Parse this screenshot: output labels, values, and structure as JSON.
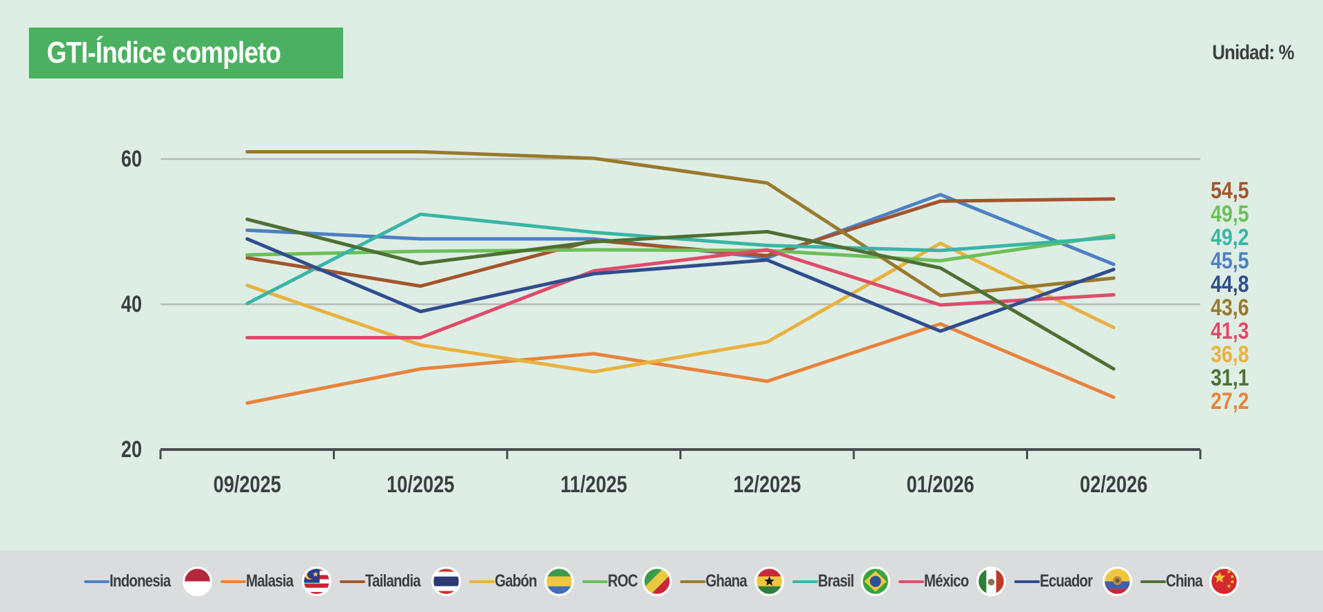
{
  "title": "GTI-Índice completo",
  "unit_label": "Unidad: %",
  "colors": {
    "background": "#dfeee5",
    "title_bg": "#4bb161",
    "title_text": "#ffffff",
    "legend_bg": "#dbdcde",
    "grid": "#b6b9ba",
    "axis": "#4a4d4f",
    "text": "#3b3e42"
  },
  "chart_data": {
    "type": "line",
    "title": "GTI-Índice completo",
    "unit": "%",
    "categories": [
      "09/2025",
      "10/2025",
      "11/2025",
      "12/2025",
      "01/2026",
      "02/2026"
    ],
    "yticks": [
      60,
      40,
      20
    ],
    "ylim": [
      20,
      63
    ],
    "grid": "horizontal-only",
    "legend_position": "bottom",
    "decimal_separator": ",",
    "series": [
      {
        "name": "Indonesia",
        "flag": "indonesia",
        "color": "#4d80c4",
        "values": [
          50.2,
          49.0,
          49.0,
          46.4,
          55.1,
          45.5
        ],
        "end_label": "45,5"
      },
      {
        "name": "Malasia",
        "flag": "malaysia",
        "color": "#e8833c",
        "values": [
          26.4,
          31.1,
          33.2,
          29.4,
          37.3,
          27.2
        ],
        "end_label": "27,2"
      },
      {
        "name": "Tailandia",
        "flag": "thailand",
        "color": "#a3542c",
        "values": [
          46.4,
          42.5,
          48.8,
          46.7,
          54.2,
          54.5
        ],
        "end_label": "54,5"
      },
      {
        "name": "Gabón",
        "flag": "gabon",
        "color": "#e9b23e",
        "values": [
          42.6,
          34.4,
          30.7,
          34.8,
          48.4,
          36.8
        ],
        "end_label": "36,8"
      },
      {
        "name": "ROC",
        "flag": "congo",
        "color": "#6cbf58",
        "values": [
          46.8,
          47.3,
          47.5,
          47.4,
          46.0,
          49.5
        ],
        "end_label": "49,5"
      },
      {
        "name": "Ghana",
        "flag": "ghana",
        "color": "#99792c",
        "values": [
          61.0,
          61.0,
          60.1,
          56.7,
          41.2,
          43.6
        ],
        "end_label": "43,6"
      },
      {
        "name": "Brasil",
        "flag": "brazil",
        "color": "#37b6a6",
        "values": [
          40.1,
          52.4,
          49.9,
          48.1,
          47.4,
          49.2
        ],
        "end_label": "49,2"
      },
      {
        "name": "México",
        "flag": "mexico",
        "color": "#e04b6b",
        "values": [
          35.4,
          35.4,
          44.6,
          47.5,
          39.9,
          41.3
        ],
        "end_label": "41,3"
      },
      {
        "name": "Ecuador",
        "flag": "ecuador",
        "color": "#2f4d8e",
        "values": [
          49.0,
          39.0,
          44.2,
          46.1,
          36.3,
          44.8
        ],
        "end_label": "44,8"
      },
      {
        "name": "China",
        "flag": "china",
        "color": "#4e7033",
        "values": [
          51.7,
          45.6,
          48.6,
          50.0,
          45.0,
          31.1
        ],
        "end_label": "31,1"
      }
    ]
  }
}
